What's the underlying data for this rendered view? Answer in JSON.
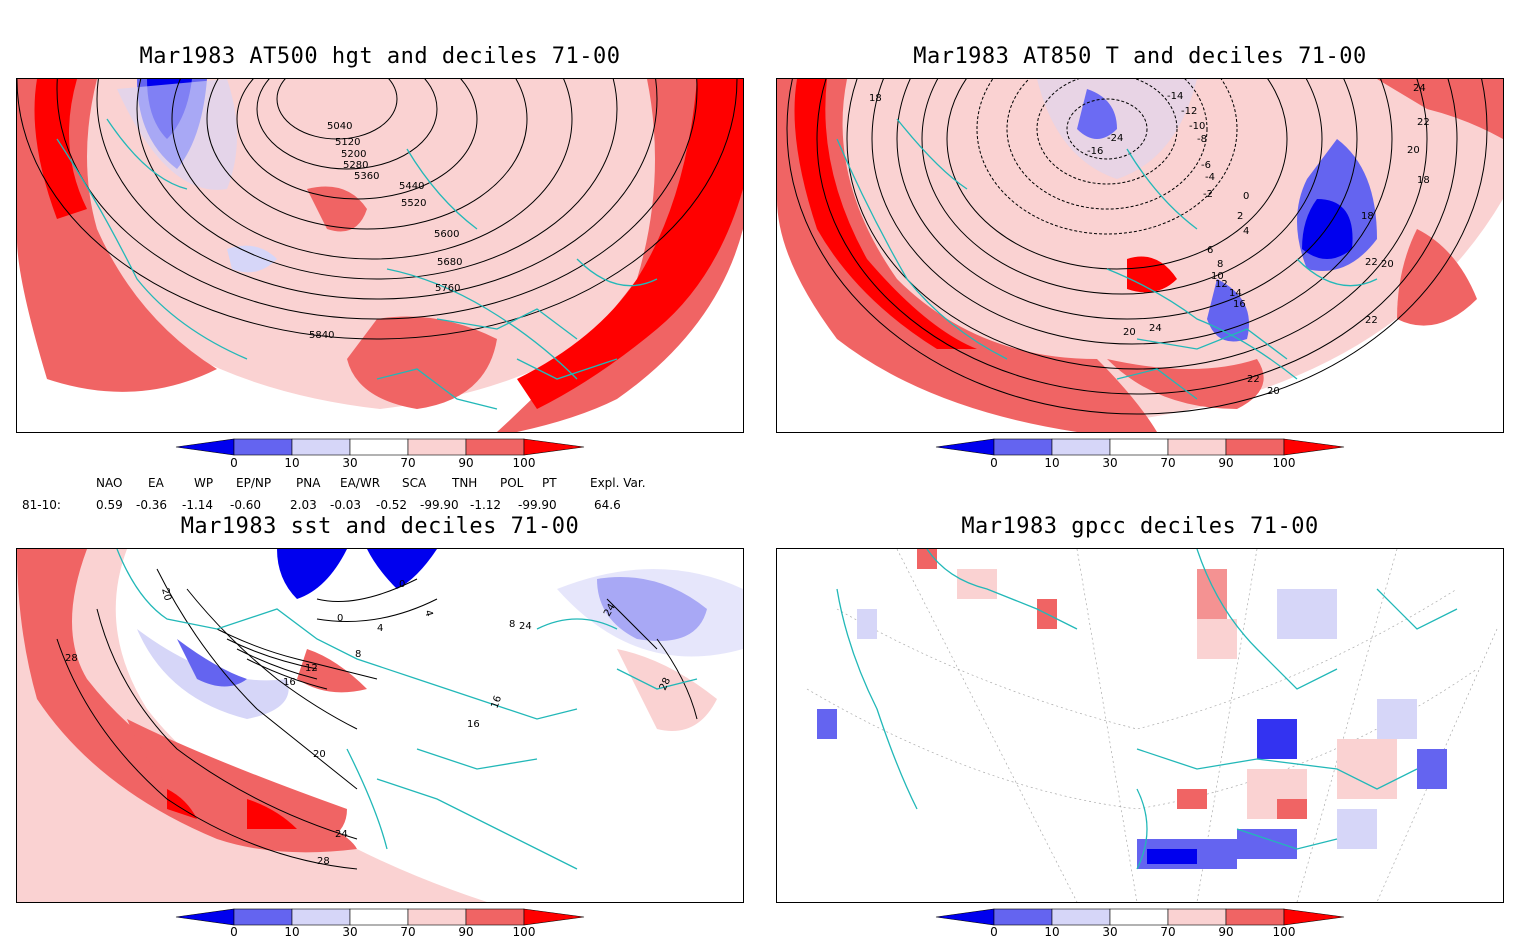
{
  "panels": [
    {
      "id": "p1",
      "title": "Mar1983 AT500 hgt and deciles 71-00",
      "contour_labels": [
        "5040",
        "5120",
        "5200",
        "5280",
        "5360",
        "5440",
        "5520",
        "5600",
        "5680",
        "5760",
        "5840"
      ]
    },
    {
      "id": "p2",
      "title": "Mar1983 AT850 T and deciles 71-00",
      "contour_labels": [
        "18",
        "-14",
        "-12",
        "-10",
        "-8",
        "-6",
        "-4",
        "-2",
        "0",
        "2",
        "4",
        "-16",
        "-24",
        "6",
        "8",
        "10",
        "12",
        "14",
        "16",
        "18",
        "20",
        "22",
        "24",
        "22",
        "20",
        "18",
        "22",
        "24",
        "20",
        "22",
        "20"
      ]
    },
    {
      "id": "p3",
      "title": "Mar1983 sst and deciles 71-00",
      "contour_labels": [
        "20",
        "28",
        "0",
        "4",
        "0",
        "8",
        "12",
        "16",
        "20",
        "24",
        "28",
        "16",
        "16",
        "24",
        "28",
        "4",
        "8",
        "24"
      ]
    },
    {
      "id": "p4",
      "title": "Mar1983 gpcc deciles 71-00",
      "contour_labels": []
    }
  ],
  "colorbar": {
    "ticks": [
      "0",
      "10",
      "30",
      "70",
      "90",
      "100"
    ],
    "colors": {
      "dark_blue": "#0000ee",
      "mid_blue": "#6464f0",
      "light_blue": "#d6d6f8",
      "white": "#ffffff",
      "light_red": "#fad2d2",
      "mid_red": "#f06464",
      "dark_red": "#ff0000"
    }
  },
  "indices": {
    "headers": [
      "NAO",
      "EA",
      "WP",
      "EP/NP",
      "PNA",
      "EA/WR",
      "SCA",
      "TNH",
      "POL",
      "PT",
      "Expl. Var."
    ],
    "row_label": "81-10:",
    "values": [
      "0.59",
      "-0.36",
      "-1.14",
      "-0.60",
      "2.03",
      "-0.03",
      "-0.52",
      "-99.90",
      "-1.12",
      "-99.90",
      "64.6"
    ]
  },
  "map_colors": {
    "coast": "#22b8b8",
    "contour": "#000000",
    "grid": "#888888"
  }
}
